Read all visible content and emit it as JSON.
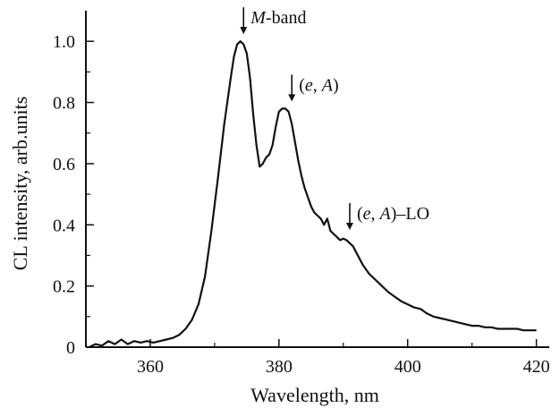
{
  "chart_data": {
    "type": "line",
    "title": "",
    "xlabel": "Wavelength, nm",
    "ylabel": "CL intensity, arb.units",
    "xlim": [
      350,
      422
    ],
    "ylim": [
      0,
      1.1
    ],
    "x_ticks": [
      360,
      380,
      400,
      420
    ],
    "x_tick_labels": [
      "360",
      "380",
      "400",
      "420"
    ],
    "y_ticks": [
      0,
      0.2,
      0.4,
      0.6,
      0.8,
      1.0
    ],
    "y_tick_labels": [
      "0",
      "0.2",
      "0.4",
      "0.6",
      "0.8",
      "1.0"
    ],
    "grid": false,
    "series": [
      {
        "color": "#111111",
        "x": [
          350.5,
          351.5,
          352.5,
          353.5,
          354.5,
          355.5,
          356.5,
          357.5,
          358.5,
          359.5,
          360.5,
          361.5,
          362.5,
          363.5,
          364.5,
          365.5,
          366.5,
          367.5,
          368.5,
          369.5,
          370.5,
          371.5,
          372.5,
          373.0,
          373.5,
          374.0,
          374.5,
          375.0,
          375.5,
          376.0,
          376.5,
          377.0,
          377.5,
          378.0,
          378.5,
          379.0,
          379.5,
          380.0,
          380.5,
          381.0,
          381.5,
          382.0,
          382.5,
          383.0,
          383.5,
          384.0,
          384.5,
          385.0,
          385.5,
          386.0,
          386.5,
          387.0,
          387.5,
          388.0,
          388.5,
          389.0,
          389.5,
          390.0,
          390.5,
          391.0,
          391.5,
          392.0,
          392.5,
          393.0,
          394.0,
          395.0,
          396.0,
          397.0,
          398.0,
          399.0,
          400.0,
          401.0,
          402.0,
          403.0,
          404.0,
          405.0,
          406.0,
          407.0,
          408.0,
          409.0,
          410.0,
          411.0,
          412.0,
          413.0,
          414.0,
          415.0,
          416.0,
          417.0,
          418.0,
          419.0,
          420.0
        ],
        "y": [
          0.0,
          0.01,
          0.005,
          0.02,
          0.01,
          0.025,
          0.01,
          0.02,
          0.015,
          0.02,
          0.015,
          0.02,
          0.025,
          0.03,
          0.04,
          0.06,
          0.09,
          0.14,
          0.23,
          0.38,
          0.55,
          0.73,
          0.88,
          0.95,
          0.99,
          1.0,
          0.99,
          0.96,
          0.88,
          0.76,
          0.66,
          0.59,
          0.6,
          0.62,
          0.63,
          0.66,
          0.72,
          0.77,
          0.78,
          0.78,
          0.77,
          0.73,
          0.67,
          0.61,
          0.56,
          0.52,
          0.49,
          0.46,
          0.44,
          0.43,
          0.42,
          0.4,
          0.42,
          0.38,
          0.37,
          0.36,
          0.35,
          0.355,
          0.35,
          0.34,
          0.33,
          0.31,
          0.29,
          0.27,
          0.24,
          0.22,
          0.2,
          0.18,
          0.165,
          0.15,
          0.14,
          0.13,
          0.125,
          0.11,
          0.1,
          0.095,
          0.09,
          0.085,
          0.08,
          0.075,
          0.07,
          0.07,
          0.065,
          0.065,
          0.06,
          0.06,
          0.06,
          0.06,
          0.055,
          0.055,
          0.055
        ]
      }
    ],
    "annotations": [
      {
        "x": 374.5,
        "y": 1.0,
        "label_italic": "M",
        "label_rest": "-band"
      },
      {
        "x": 382.0,
        "y": 0.78,
        "label_paren_open": "(",
        "label_e": "e",
        "label_comma": ", ",
        "label_A": "A",
        "label_paren_close": ")",
        "label_rest": ""
      },
      {
        "x": 391.0,
        "y": 0.36,
        "label_paren_open": "(",
        "label_e": "e",
        "label_comma": ", ",
        "label_A": "A",
        "label_paren_close": ")",
        "label_rest": "–LO"
      }
    ]
  }
}
